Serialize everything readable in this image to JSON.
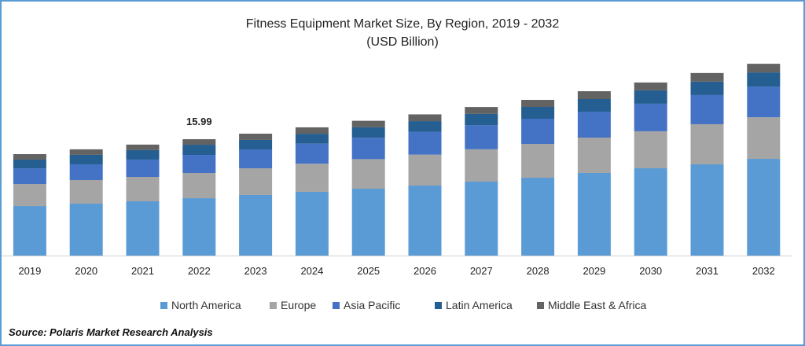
{
  "chart_data": {
    "type": "bar",
    "stacked": true,
    "title": "Fitness Equipment Market Size, By Region, 2019 - 2032",
    "subtitle": "(USD Billion)",
    "xlabel": "",
    "ylabel": "",
    "ylim": [
      0,
      28
    ],
    "grid": false,
    "legend_position": "bottom",
    "categories": [
      "2019",
      "2020",
      "2021",
      "2022",
      "2023",
      "2024",
      "2025",
      "2026",
      "2027",
      "2028",
      "2029",
      "2030",
      "2031",
      "2032"
    ],
    "series": [
      {
        "name": "North America",
        "color": "#5b9bd5",
        "values": [
          6.8,
          7.13,
          7.45,
          7.88,
          8.32,
          8.75,
          9.18,
          9.61,
          10.15,
          10.69,
          11.34,
          11.99,
          12.53,
          13.28
        ]
      },
      {
        "name": "Europe",
        "color": "#a5a5a5",
        "values": [
          3.02,
          3.24,
          3.35,
          3.46,
          3.67,
          3.86,
          4.06,
          4.25,
          4.45,
          4.64,
          4.86,
          5.08,
          5.51,
          5.72
        ]
      },
      {
        "name": "Asia Pacific",
        "color": "#4472c4",
        "values": [
          2.16,
          2.16,
          2.38,
          2.48,
          2.59,
          2.76,
          2.94,
          3.11,
          3.29,
          3.46,
          3.56,
          3.78,
          4.0,
          4.21
        ]
      },
      {
        "name": "Latin America",
        "color": "#255e91",
        "values": [
          1.19,
          1.3,
          1.3,
          1.4,
          1.3,
          1.36,
          1.43,
          1.49,
          1.56,
          1.62,
          1.73,
          1.84,
          1.84,
          1.94
        ]
      },
      {
        "name": "Middle East & Africa",
        "color": "#636363",
        "values": [
          0.76,
          0.76,
          0.76,
          0.76,
          0.86,
          0.88,
          0.9,
          0.93,
          0.95,
          0.97,
          1.08,
          1.08,
          1.19,
          1.19
        ]
      }
    ],
    "annotations": [
      {
        "category": "2022",
        "text": "15.99"
      }
    ]
  },
  "source": "Source: Polaris Market Research Analysis"
}
